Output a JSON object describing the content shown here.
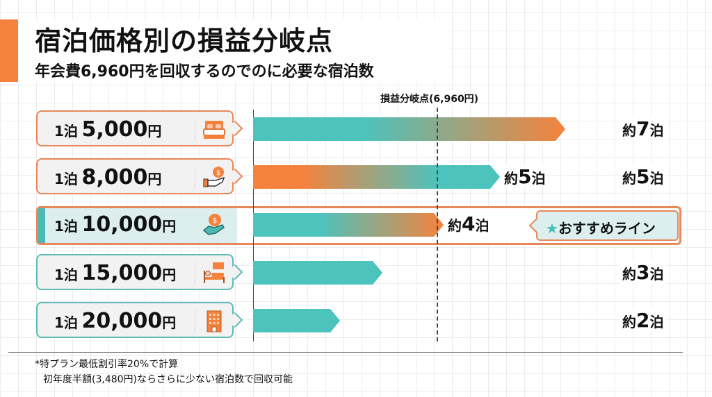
{
  "header": {
    "title": "宿泊価格別の損益分岐点",
    "subtitle": "年会費6,960円を回収するのでのに必要な宿泊数"
  },
  "colors": {
    "orange": "#f5823c",
    "teal": "#4cc3bd",
    "highlight_bg": "#dcefee"
  },
  "chart_data": {
    "type": "bar",
    "orientation": "horizontal",
    "title": "宿泊価格別の損益分岐点",
    "subtitle": "年会費6,960円を回収するのでのに必要な宿泊数",
    "categories": [
      "1泊 5,000円",
      "1泊 8,000円",
      "1泊 10,000円",
      "1泊 15,000円",
      "1泊 20,000円"
    ],
    "values": [
      7,
      5,
      4,
      3,
      2
    ],
    "xlim": [
      0,
      8
    ],
    "unit": "泊",
    "reference_line": {
      "label": "損益分岐点(6,960円)"
    },
    "highlight": {
      "category": "1泊 10,000円",
      "label": "おすすめライン"
    }
  },
  "rows": [
    {
      "prefix": "1泊",
      "amount": "5,000",
      "yen": "円",
      "icon": "bed-icon",
      "value_prefix": "約",
      "value": "7",
      "value_unit": "泊",
      "bar_value": 7,
      "border": "orange",
      "gradient": "teal-to-orange"
    },
    {
      "prefix": "1泊",
      "amount": "8,000",
      "yen": "円",
      "icon": "hand-coin-icon",
      "value_prefix": "約",
      "value": "5",
      "value_unit": "泊",
      "bar_value": 5,
      "border": "orange",
      "gradient": "orange-to-teal"
    },
    {
      "prefix": "1泊",
      "amount": "10,000",
      "yen": "円",
      "icon": "hand-coin-icon",
      "value_prefix": "約",
      "value": "4",
      "value_unit": "泊",
      "bar_value": 4,
      "border": "highlight",
      "gradient": "teal-to-orange"
    },
    {
      "prefix": "1泊",
      "amount": "15,000",
      "yen": "円",
      "icon": "sleeping-person-icon",
      "value_prefix": "約",
      "value": "3",
      "value_unit": "泊",
      "bar_value": 3,
      "border": "teal",
      "gradient": "teal"
    },
    {
      "prefix": "1泊",
      "amount": "20,000",
      "yen": "円",
      "icon": "hotel-building-icon",
      "value_prefix": "約",
      "value": "2",
      "value_unit": "泊",
      "bar_value": 2,
      "border": "teal",
      "gradient": "teal"
    }
  ],
  "recommend": {
    "star": "★",
    "label": "おすすめライン"
  },
  "footnotes": [
    "*特プラン最低割引率20%で計算",
    "初年度半額(3,480円)ならさらに少ない宿泊数で回収可能"
  ]
}
